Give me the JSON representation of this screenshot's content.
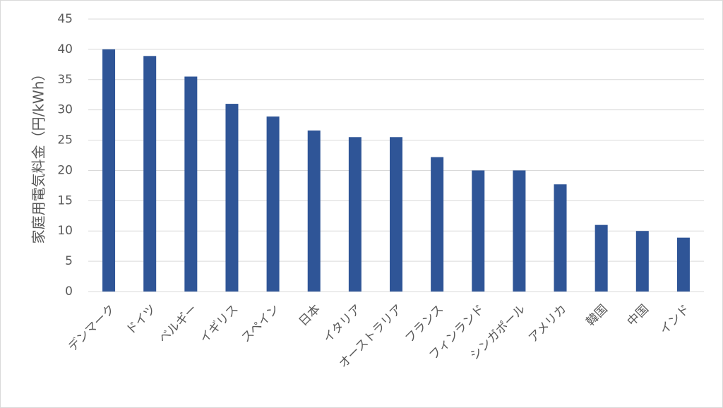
{
  "chart_data": {
    "type": "bar",
    "y_label": "家庭用電気料金（円/kWh）",
    "categories": [
      "デンマーク",
      "ドイツ",
      "ベルギー",
      "イギリス",
      "スペイン",
      "日本",
      "イタリア",
      "オーストラリア",
      "フランス",
      "フィンランド",
      "シンガポール",
      "アメリカ",
      "韓国",
      "中国",
      "インド"
    ],
    "values": [
      40,
      38.9,
      35.5,
      31,
      28.9,
      26.6,
      25.5,
      25.5,
      22.2,
      20,
      20,
      17.7,
      11,
      10,
      8.9
    ],
    "color": "#2f5597",
    "ylim": [
      0,
      45
    ],
    "yticks": [
      0,
      5,
      10,
      15,
      20,
      25,
      30,
      35,
      40,
      45
    ],
    "grid": true
  }
}
